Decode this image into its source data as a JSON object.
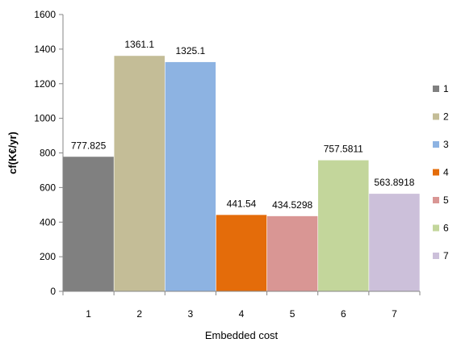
{
  "chart_data": {
    "type": "bar",
    "title": "",
    "xlabel": "Embedded cost",
    "ylabel": "cf(K€/yr)",
    "categories": [
      "1",
      "2",
      "3",
      "4",
      "5",
      "6",
      "7"
    ],
    "values": [
      777.825,
      1361.1,
      1325.1,
      441.54,
      434.5298,
      757.5811,
      563.8918
    ],
    "value_labels": [
      "777.825",
      "1361.1",
      "1325.1",
      "441.54",
      "434.5298",
      "757.5811",
      "563.8918"
    ],
    "colors": [
      "#808080",
      "#c4bd97",
      "#8db3e2",
      "#e46c0a",
      "#d99694",
      "#c3d69b",
      "#ccc0da"
    ],
    "ylim": [
      0,
      1600
    ],
    "yticks": [
      "0",
      "200",
      "400",
      "600",
      "800",
      "1000",
      "1200",
      "1400",
      "1600"
    ],
    "grid": false,
    "legend": {
      "position": "right",
      "entries": [
        "1",
        "2",
        "3",
        "4",
        "5",
        "6",
        "7"
      ]
    }
  }
}
